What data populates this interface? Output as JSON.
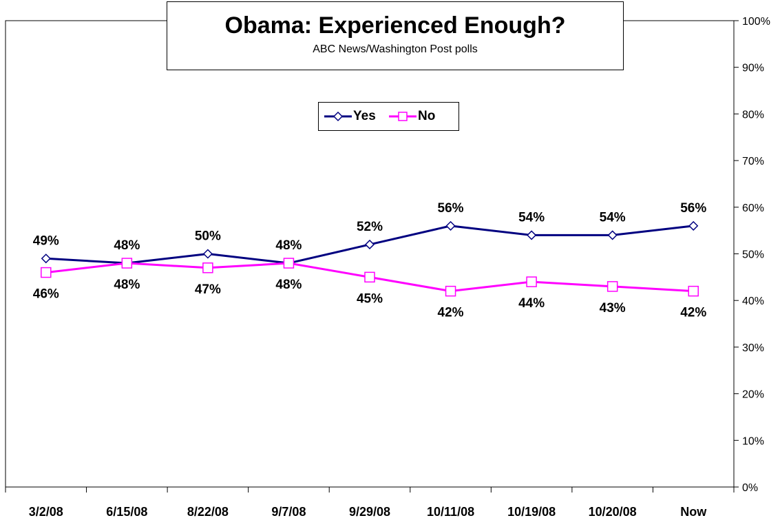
{
  "chart_data": {
    "type": "line",
    "title": "Obama: Experienced Enough?",
    "subtitle": "ABC News/Washington Post polls",
    "categories": [
      "3/2/08",
      "6/15/08",
      "8/22/08",
      "9/7/08",
      "9/29/08",
      "10/11/08",
      "10/19/08",
      "10/20/08",
      "Now"
    ],
    "series": [
      {
        "name": "Yes",
        "values": [
          49,
          48,
          50,
          48,
          52,
          56,
          54,
          54,
          56
        ],
        "color": "#000080",
        "marker": "diamond"
      },
      {
        "name": "No",
        "values": [
          46,
          48,
          47,
          48,
          45,
          42,
          44,
          43,
          42
        ],
        "color": "#ff00ff",
        "marker": "square"
      }
    ],
    "ylim": [
      0,
      100
    ],
    "yticks": [
      "0%",
      "10%",
      "20%",
      "30%",
      "40%",
      "50%",
      "60%",
      "70%",
      "80%",
      "90%",
      "100%"
    ],
    "y_axis_side": "right",
    "grid": false,
    "legend_position": "top-center",
    "value_suffix": "%"
  }
}
